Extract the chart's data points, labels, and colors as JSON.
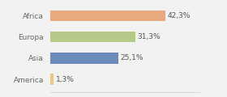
{
  "categories": [
    "Africa",
    "Europa",
    "Asia",
    "America"
  ],
  "values": [
    42.3,
    31.3,
    25.1,
    1.3
  ],
  "labels": [
    "42,3%",
    "31,3%",
    "25,1%",
    "1,3%"
  ],
  "bar_colors": [
    "#e8a97e",
    "#b5c98a",
    "#6b8cba",
    "#e8c97e"
  ],
  "background_color": "#f2f2f2",
  "xlim": [
    0,
    55
  ],
  "label_fontsize": 6.5,
  "tick_fontsize": 6.5,
  "bar_height": 0.52
}
